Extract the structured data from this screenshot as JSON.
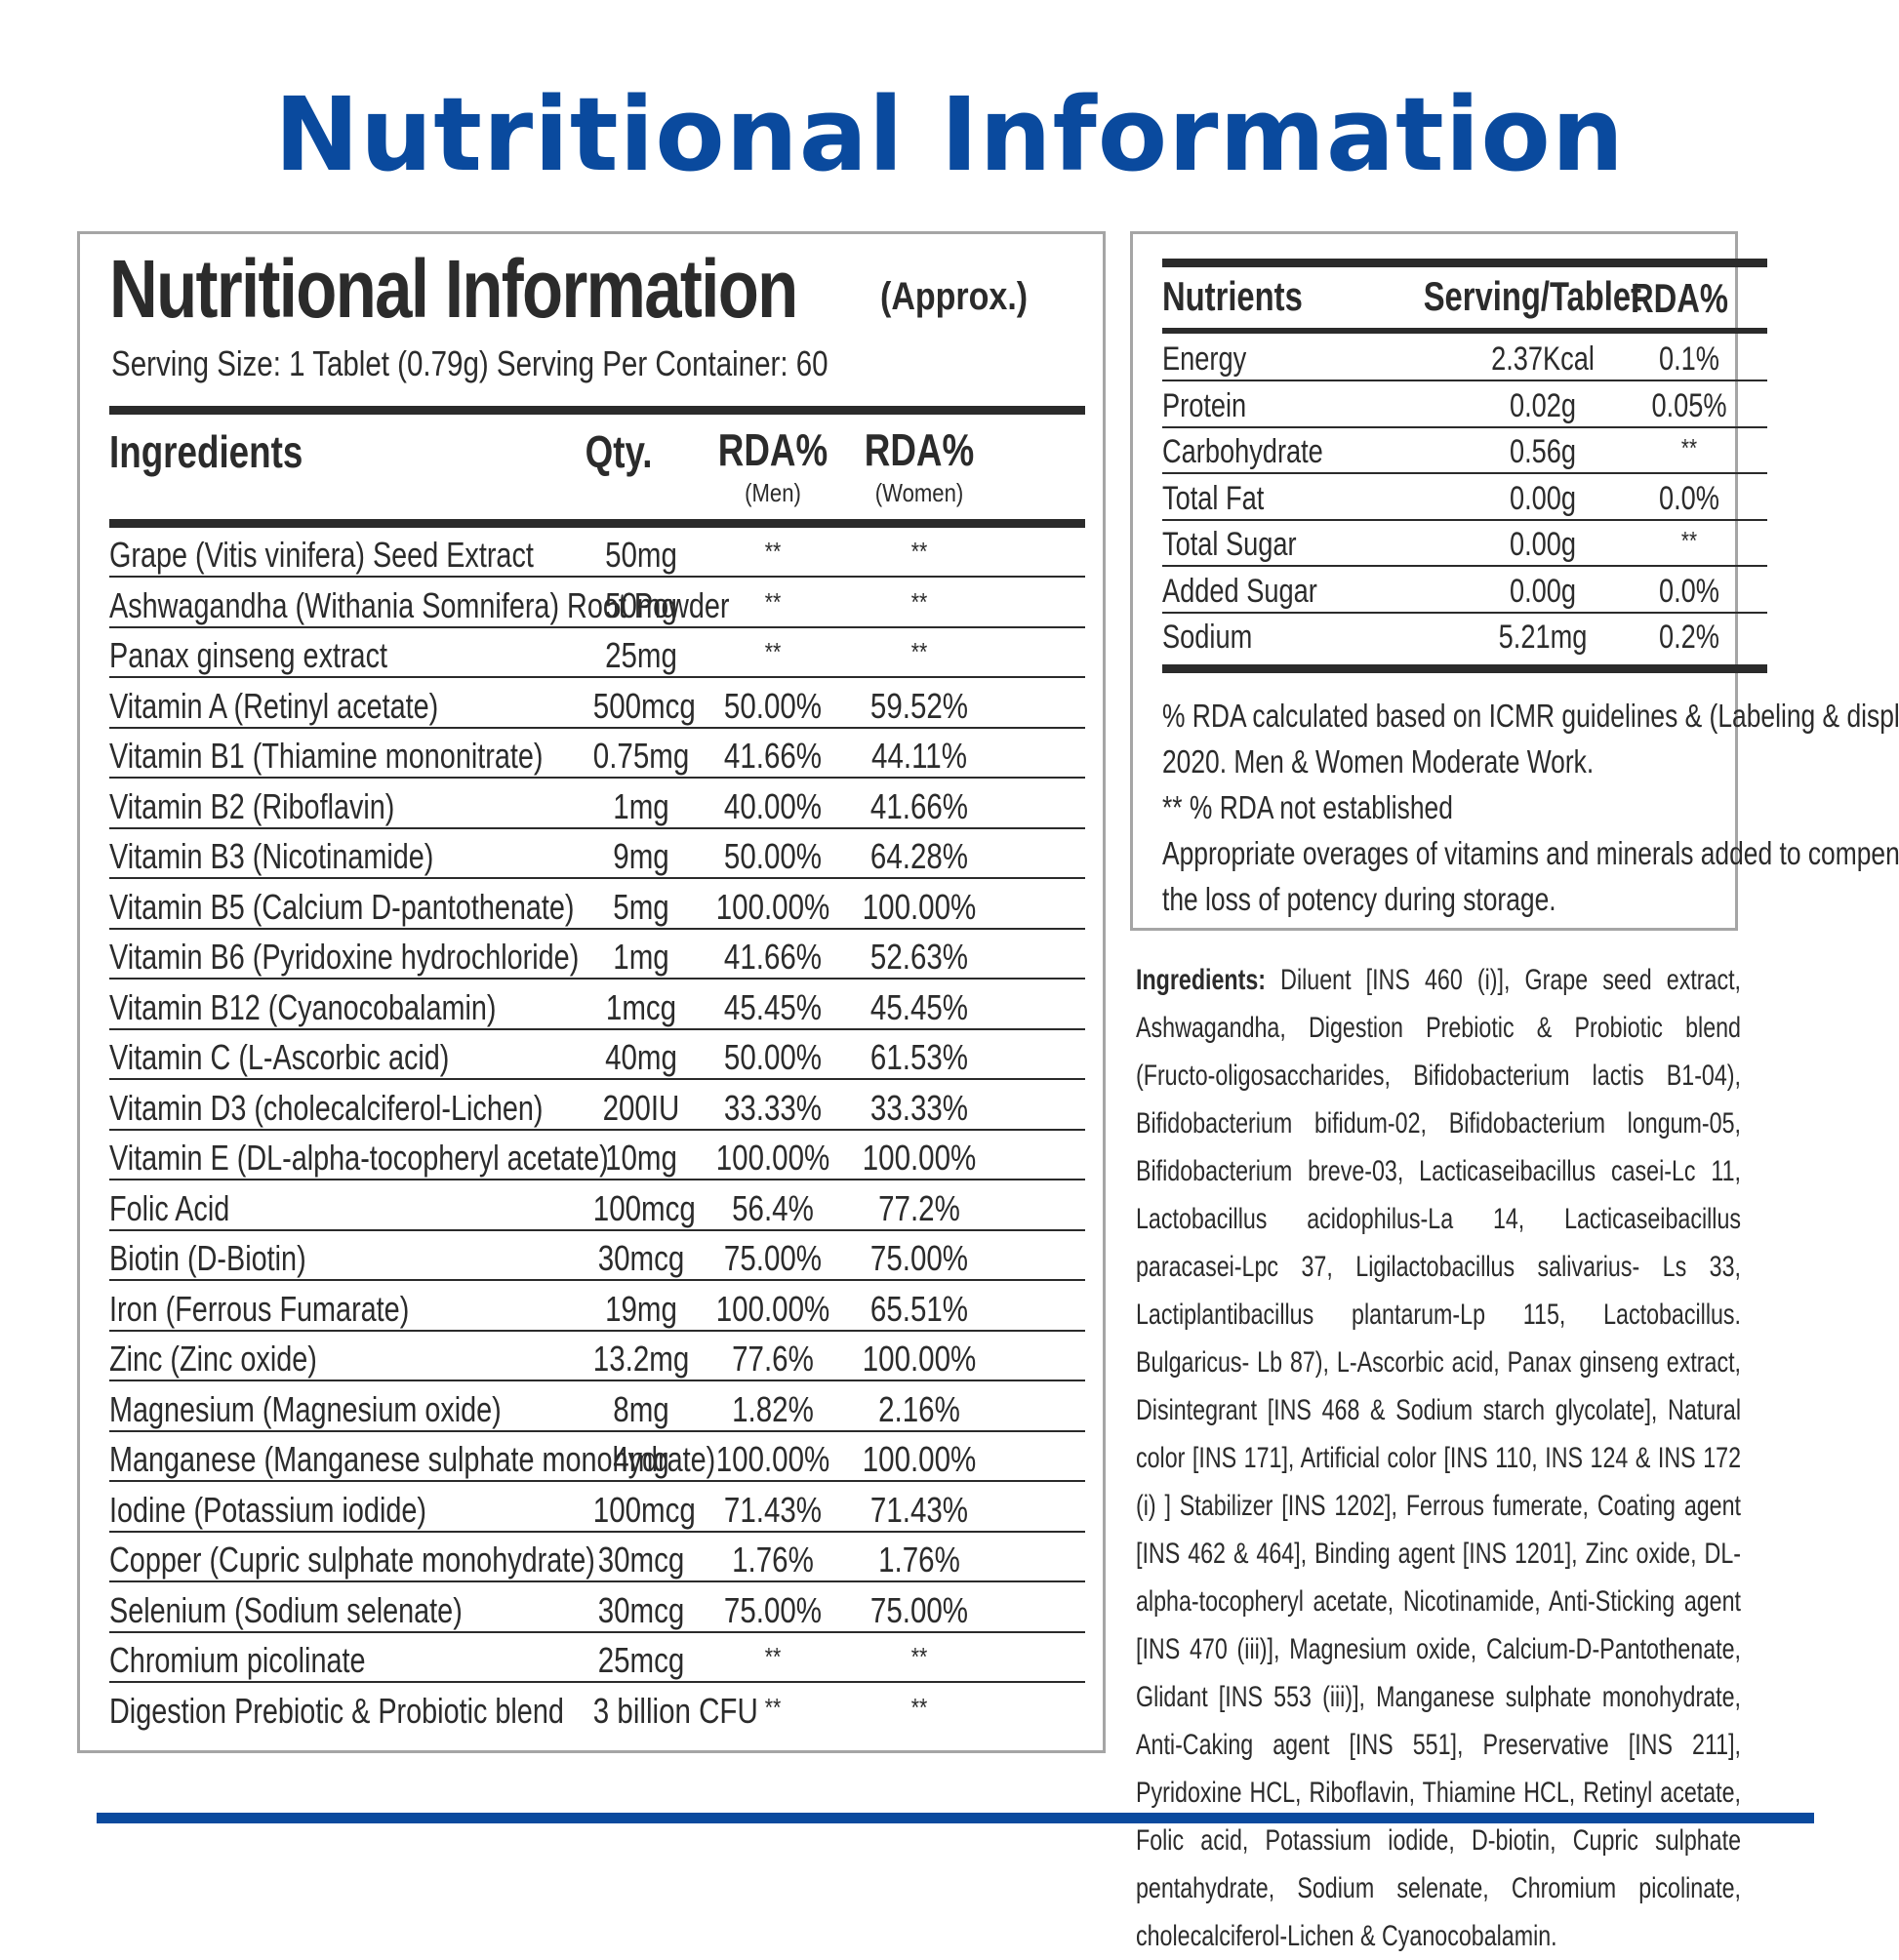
{
  "title": "Nutritional Information",
  "left_panel": {
    "heading": "Nutritional Information",
    "approx": "(Approx.)",
    "serving_line": "Serving Size: 1 Tablet (0.79g) Serving Per Container: 60",
    "columns": {
      "ingredients": "Ingredients",
      "qty": "Qty.",
      "rda_men": "RDA%",
      "rda_men_sub": "(Men)",
      "rda_women": "RDA%",
      "rda_women_sub": "(Women)"
    },
    "rows": [
      {
        "name": "Grape (Vitis vinifera) Seed Extract",
        "qty": "50mg",
        "men": "**",
        "women": "**"
      },
      {
        "name": "Ashwagandha (Withania Somnifera) Root Powder",
        "qty": "50mg",
        "men": "**",
        "women": "**"
      },
      {
        "name": "Panax ginseng extract",
        "qty": "25mg",
        "men": "**",
        "women": "**"
      },
      {
        "name": "Vitamin A (Retinyl acetate)",
        "qty": "500mcg",
        "men": "50.00%",
        "women": "59.52%"
      },
      {
        "name": "Vitamin B1 (Thiamine mononitrate)",
        "qty": "0.75mg",
        "men": "41.66%",
        "women": "44.11%"
      },
      {
        "name": "Vitamin B2 (Riboflavin)",
        "qty": "1mg",
        "men": "40.00%",
        "women": "41.66%"
      },
      {
        "name": "Vitamin B3 (Nicotinamide)",
        "qty": "9mg",
        "men": "50.00%",
        "women": "64.28%"
      },
      {
        "name": "Vitamin B5 (Calcium D-pantothenate)",
        "qty": "5mg",
        "men": "100.00%",
        "women": "100.00%"
      },
      {
        "name": "Vitamin B6 (Pyridoxine hydrochloride)",
        "qty": "1mg",
        "men": "41.66%",
        "women": "52.63%"
      },
      {
        "name": "Vitamin B12 (Cyanocobalamin)",
        "qty": "1mcg",
        "men": "45.45%",
        "women": "45.45%"
      },
      {
        "name": "Vitamin C (L-Ascorbic acid)",
        "qty": "40mg",
        "men": "50.00%",
        "women": "61.53%"
      },
      {
        "name": "Vitamin D3 (cholecalciferol-Lichen)",
        "qty": "200IU",
        "men": "33.33%",
        "women": "33.33%"
      },
      {
        "name": "Vitamin E (DL-alpha-tocopheryl acetate)",
        "qty": "10mg",
        "men": "100.00%",
        "women": "100.00%"
      },
      {
        "name": "Folic Acid",
        "qty": "100mcg",
        "men": "56.4%",
        "women": "77.2%"
      },
      {
        "name": "Biotin (D-Biotin)",
        "qty": "30mcg",
        "men": "75.00%",
        "women": "75.00%"
      },
      {
        "name": "Iron (Ferrous Fumarate)",
        "qty": "19mg",
        "men": "100.00%",
        "women": "65.51%"
      },
      {
        "name": "Zinc (Zinc oxide)",
        "qty": "13.2mg",
        "men": "77.6%",
        "women": "100.00%"
      },
      {
        "name": "Magnesium (Magnesium oxide)",
        "qty": "8mg",
        "men": "1.82%",
        "women": "2.16%"
      },
      {
        "name": "Manganese (Manganese sulphate monohydrate)",
        "qty": "4mg",
        "men": "100.00%",
        "women": "100.00%"
      },
      {
        "name": "Iodine (Potassium iodide)",
        "qty": "100mcg",
        "men": "71.43%",
        "women": "71.43%"
      },
      {
        "name": "Copper (Cupric sulphate monohydrate)",
        "qty": "30mcg",
        "men": "1.76%",
        "women": "1.76%"
      },
      {
        "name": "Selenium (Sodium selenate)",
        "qty": "30mcg",
        "men": "75.00%",
        "women": "75.00%"
      },
      {
        "name": "Chromium picolinate",
        "qty": "25mcg",
        "men": "**",
        "women": "**"
      },
      {
        "name": "Digestion Prebiotic & Probiotic blend",
        "qty": "3 billion CFU",
        "men": "**",
        "women": "**"
      }
    ]
  },
  "right_panel": {
    "columns": {
      "nutrients": "Nutrients",
      "serving": "Serving/Tablet",
      "rda": "RDA%"
    },
    "rows": [
      {
        "name": "Energy",
        "serving": "2.37Kcal",
        "rda": "0.1%"
      },
      {
        "name": "Protein",
        "serving": "0.02g",
        "rda": "0.05%"
      },
      {
        "name": "Carbohydrate",
        "serving": "0.56g",
        "rda": "**"
      },
      {
        "name": "Total Fat",
        "serving": "0.00g",
        "rda": "0.0%"
      },
      {
        "name": "Total Sugar",
        "serving": "0.00g",
        "rda": "**"
      },
      {
        "name": "Added Sugar",
        "serving": "0.00g",
        "rda": "0.0%"
      },
      {
        "name": "Sodium",
        "serving": "5.21mg",
        "rda": "0.2%"
      }
    ],
    "notes": [
      "% RDA calculated based on ICMR guidelines & (Labeling & display)",
      "2020. Men & Women Moderate Work.",
      "** % RDA not established",
      "Appropriate overages of vitamins and minerals added to compensate",
      "the loss of potency during storage."
    ]
  },
  "ingredients_text": {
    "label": "Ingredients:",
    "body": " Diluent [INS 460 (i)], Grape seed extract, Ashwagandha, Digestion Prebiotic & Probiotic blend (Fructo-oligosaccharides, Bifidobacterium lactis B1-04), Bifidobacterium bifidum-02, Bifidobacterium longum-05, Bifidobacterium breve-03, Lacticaseibacillus casei-Lc 11, Lactobacillus acidophilus-La 14, Lacticaseibacillus paracasei-Lpc 37, Ligilactobacillus salivarius- Ls 33, Lactiplantibacillus plantarum-Lp 115, Lactobacillus. Bulgaricus- Lb 87), L-Ascorbic acid, Panax ginseng extract, Disintegrant [INS 468 & Sodium starch glycolate], Natural color [INS 171], Artificial color [INS 110, INS 124 & INS 172 (i) ] Stabilizer [INS 1202], Ferrous fumerate, Coating agent [INS 462 & 464], Binding agent [INS 1201], Zinc oxide, DL-alpha-tocopheryl acetate, Nicotinamide, Anti-Sticking agent [INS 470 (iii)], Magnesium oxide, Calcium-D-Pantothenate, Glidant [INS 553 (iii)], Manganese sulphate monohydrate, Anti-Caking agent [INS 551], Preservative [INS 211], Pyridoxine HCL, Riboflavin, Thiamine HCL, Retinyl acetate, Folic acid, Potassium iodide, D-biotin, Cupric sulphate pentahydrate, Sodium selenate, Chromium picolinate, cholecalciferol-Lichen & Cyanocobalamin."
  },
  "colors": {
    "brand_blue": "#0a4a9e",
    "text": "#2b2b2b",
    "panel_border": "#a5a5a5"
  }
}
